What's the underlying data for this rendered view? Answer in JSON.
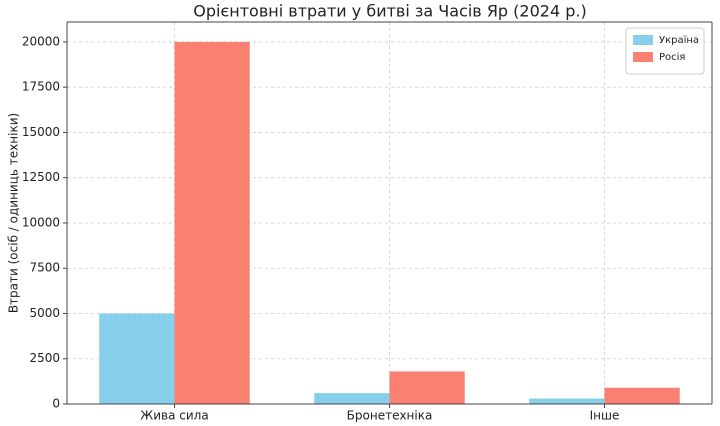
{
  "chart_data": {
    "type": "bar",
    "title": "Орієнтовні втрати у битві за Часів Яр (2024 р.)",
    "ylabel": "Втрати (осіб / одиниць техніки)",
    "categories": [
      "Жива сила",
      "Бронетехніка",
      "Інше"
    ],
    "series": [
      {
        "name": "Україна",
        "color": "#87ceeb",
        "values": [
          5000,
          600,
          300
        ]
      },
      {
        "name": "Росія",
        "color": "#fa8072",
        "values": [
          20000,
          1800,
          900
        ]
      }
    ],
    "ylim": [
      0,
      21100
    ],
    "yticks": [
      0,
      2500,
      5000,
      7500,
      10000,
      12500,
      15000,
      17500,
      20000
    ],
    "grid": true,
    "legend": "upper-right"
  }
}
